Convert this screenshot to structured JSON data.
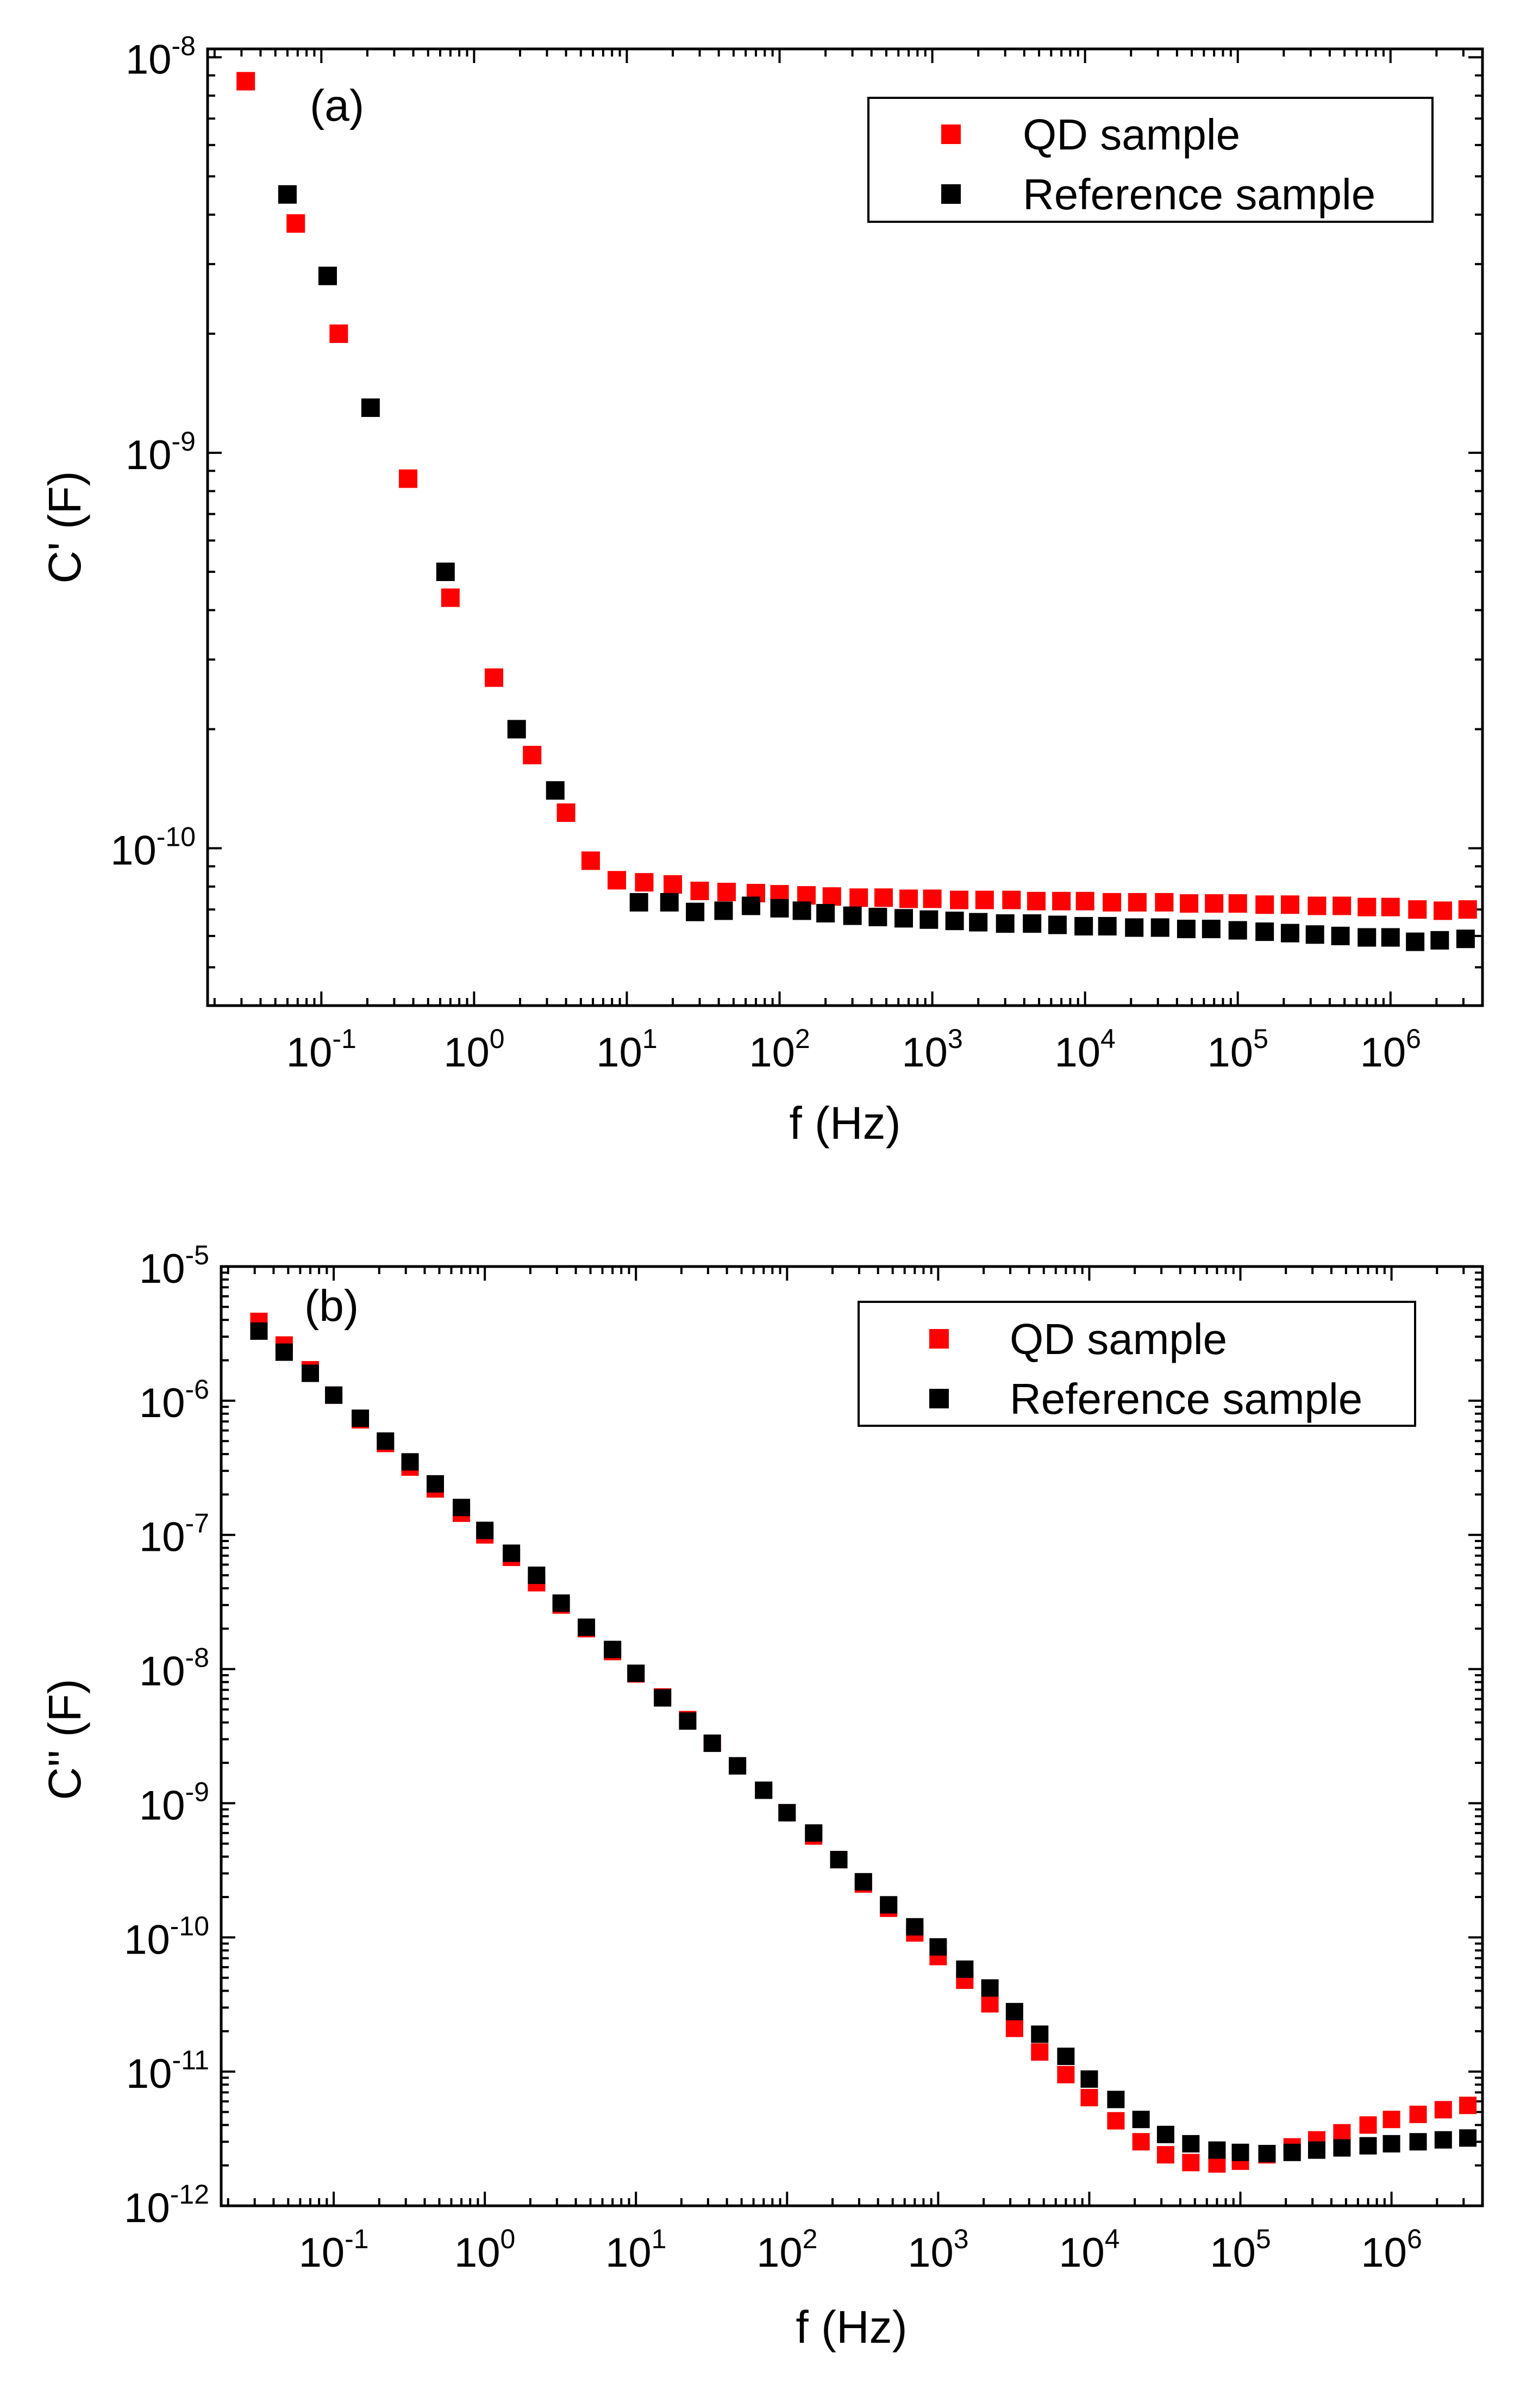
{
  "chart_data": [
    {
      "type": "scatter",
      "panel_label": "(a)",
      "xlabel": "f (Hz)",
      "ylabel": "C' (F)",
      "xscale": "log",
      "yscale": "log",
      "xlim": [
        0.018,
        4000000
      ],
      "ylim": [
        4e-11,
        1.05e-08
      ],
      "x_ticks": [
        {
          "base": "10",
          "exp": "-1"
        },
        {
          "base": "10",
          "exp": "0"
        },
        {
          "base": "10",
          "exp": "1"
        },
        {
          "base": "10",
          "exp": "2"
        },
        {
          "base": "10",
          "exp": "3"
        },
        {
          "base": "10",
          "exp": "4"
        },
        {
          "base": "10",
          "exp": "5"
        },
        {
          "base": "10",
          "exp": "6"
        }
      ],
      "y_ticks": [
        {
          "base": "10",
          "exp": "-10"
        },
        {
          "base": "10",
          "exp": "-9"
        },
        {
          "base": "10",
          "exp": "-8"
        }
      ],
      "legend_position": "top-right",
      "series": [
        {
          "name": "QD sample",
          "color": "#ff0000",
          "x": [
            0.032,
            0.068,
            0.13,
            0.37,
            0.7,
            1.35,
            2.4,
            4.0,
            5.8,
            8.6,
            13,
            20,
            30,
            45,
            70,
            100,
            150,
            220,
            330,
            480,
            700,
            1000,
            1500,
            2200,
            3300,
            4800,
            7000,
            10000,
            15000,
            22000,
            33000,
            48000,
            70000,
            100000,
            150000,
            220000,
            330000,
            480000,
            700000,
            1000000,
            1500000,
            2200000,
            3200000
          ],
          "y": [
            8.7e-09,
            3.8e-09,
            2e-09,
            8.6e-10,
            4.3e-10,
            2.7e-10,
            1.72e-10,
            1.23e-10,
            9.3e-11,
            8.3e-11,
            8.2e-11,
            8.1e-11,
            7.8e-11,
            7.75e-11,
            7.7e-11,
            7.65e-11,
            7.6e-11,
            7.55e-11,
            7.5e-11,
            7.5e-11,
            7.45e-11,
            7.45e-11,
            7.4e-11,
            7.4e-11,
            7.4e-11,
            7.35e-11,
            7.35e-11,
            7.35e-11,
            7.3e-11,
            7.3e-11,
            7.3e-11,
            7.25e-11,
            7.25e-11,
            7.25e-11,
            7.2e-11,
            7.2e-11,
            7.15e-11,
            7.15e-11,
            7.1e-11,
            7.1e-11,
            7e-11,
            6.95e-11,
            7e-11
          ]
        },
        {
          "name": "Reference sample",
          "color": "#000000",
          "x": [
            0.06,
            0.11,
            0.21,
            0.65,
            1.9,
            3.4,
            12,
            19,
            28,
            43,
            65,
            100,
            140,
            200,
            300,
            440,
            650,
            950,
            1400,
            2000,
            3000,
            4500,
            6600,
            9800,
            14000,
            21000,
            31000,
            46000,
            67000,
            100000,
            150000,
            220000,
            320000,
            470000,
            700000,
            1000000,
            1450000,
            2100000,
            3100000
          ],
          "y": [
            4.5e-09,
            2.8e-09,
            1.3e-09,
            5e-10,
            2e-10,
            1.4e-10,
            7.3e-11,
            7.3e-11,
            6.9e-11,
            6.95e-11,
            7.15e-11,
            7.05e-11,
            6.95e-11,
            6.85e-11,
            6.75e-11,
            6.7e-11,
            6.65e-11,
            6.6e-11,
            6.55e-11,
            6.5e-11,
            6.45e-11,
            6.45e-11,
            6.4e-11,
            6.35e-11,
            6.35e-11,
            6.3e-11,
            6.3e-11,
            6.25e-11,
            6.25e-11,
            6.2e-11,
            6.15e-11,
            6.1e-11,
            6.05e-11,
            6e-11,
            5.95e-11,
            5.95e-11,
            5.8e-11,
            5.85e-11,
            5.9e-11
          ]
        }
      ]
    },
    {
      "type": "scatter",
      "panel_label": "(b)",
      "xlabel": "f (Hz)",
      "ylabel": "C'' (F)",
      "xscale": "log",
      "yscale": "log",
      "xlim": [
        0.018,
        4000000
      ],
      "ylim": [
        1e-12,
        1e-05
      ],
      "x_ticks": [
        {
          "base": "10",
          "exp": "-1"
        },
        {
          "base": "10",
          "exp": "0"
        },
        {
          "base": "10",
          "exp": "1"
        },
        {
          "base": "10",
          "exp": "2"
        },
        {
          "base": "10",
          "exp": "3"
        },
        {
          "base": "10",
          "exp": "4"
        },
        {
          "base": "10",
          "exp": "5"
        },
        {
          "base": "10",
          "exp": "6"
        }
      ],
      "y_ticks": [
        {
          "base": "10",
          "exp": "-12"
        },
        {
          "base": "10",
          "exp": "-11"
        },
        {
          "base": "10",
          "exp": "-10"
        },
        {
          "base": "10",
          "exp": "-9"
        },
        {
          "base": "10",
          "exp": "-8"
        },
        {
          "base": "10",
          "exp": "-7"
        },
        {
          "base": "10",
          "exp": "-6"
        },
        {
          "base": "10",
          "exp": "-5"
        }
      ],
      "legend_position": "top-right",
      "series": [
        {
          "name": "QD sample",
          "color": "#ff0000",
          "x": [
            0.032,
            0.047,
            0.07,
            0.1,
            0.15,
            0.22,
            0.32,
            0.47,
            0.7,
            1.0,
            1.5,
            2.2,
            3.2,
            4.7,
            7.0,
            10,
            15,
            22,
            32,
            47,
            70,
            100,
            150,
            220,
            320,
            470,
            700,
            1000,
            1500,
            2200,
            3200,
            4700,
            7000,
            10000,
            15000,
            22000,
            32000,
            47000,
            70000,
            100000,
            150000,
            220000,
            320000,
            470000,
            700000,
            1000000,
            1500000,
            2200000,
            3200000
          ],
          "y": [
            3.9e-06,
            2.6e-06,
            1.7e-06,
            1.1e-06,
            7.2e-07,
            4.8e-07,
            3.2e-07,
            2.2e-07,
            1.45e-07,
            1e-07,
            6.8e-08,
            4.4e-08,
            3e-08,
            2e-08,
            1.35e-08,
            9.2e-09,
            6.2e-09,
            4.2e-09,
            2.8e-09,
            1.9e-09,
            1.25e-09,
            8.5e-10,
            5.7e-10,
            3.8e-10,
            2.5e-10,
            1.65e-10,
            1.08e-10,
            7.2e-11,
            4.8e-11,
            3.2e-11,
            2.1e-11,
            1.4e-11,
            9.5e-12,
            6.4e-12,
            4.3e-12,
            3e-12,
            2.4e-12,
            2.1e-12,
            2.05e-12,
            2.15e-12,
            2.4e-12,
            2.75e-12,
            3.1e-12,
            3.5e-12,
            4e-12,
            4.4e-12,
            4.8e-12,
            5.2e-12,
            5.6e-12
          ]
        },
        {
          "name": "Reference sample",
          "color": "#000000",
          "x": [
            0.032,
            0.047,
            0.07,
            0.1,
            0.15,
            0.22,
            0.32,
            0.47,
            0.7,
            1.0,
            1.5,
            2.2,
            3.2,
            4.7,
            7.0,
            10,
            15,
            22,
            32,
            47,
            70,
            100,
            150,
            220,
            320,
            470,
            700,
            1000,
            1500,
            2200,
            3200,
            4700,
            7000,
            10000,
            15000,
            22000,
            32000,
            47000,
            70000,
            100000,
            150000,
            220000,
            320000,
            470000,
            700000,
            1000000,
            1500000,
            2200000,
            3200000
          ],
          "y": [
            3.3e-06,
            2.3e-06,
            1.6e-06,
            1.1e-06,
            7.4e-07,
            5e-07,
            3.5e-07,
            2.4e-07,
            1.6e-07,
            1.08e-07,
            7.3e-08,
            5e-08,
            3.1e-08,
            2.05e-08,
            1.4e-08,
            9.3e-09,
            6.1e-09,
            4.1e-09,
            2.8e-09,
            1.9e-09,
            1.25e-09,
            8.5e-10,
            6e-10,
            3.8e-10,
            2.6e-10,
            1.75e-10,
            1.2e-10,
            8.5e-11,
            5.8e-11,
            4.2e-11,
            2.8e-11,
            1.9e-11,
            1.3e-11,
            8.8e-12,
            6.2e-12,
            4.4e-12,
            3.4e-12,
            2.9e-12,
            2.6e-12,
            2.5e-12,
            2.45e-12,
            2.5e-12,
            2.6e-12,
            2.7e-12,
            2.8e-12,
            2.9e-12,
            3e-12,
            3.1e-12,
            3.2e-12
          ]
        }
      ]
    }
  ]
}
